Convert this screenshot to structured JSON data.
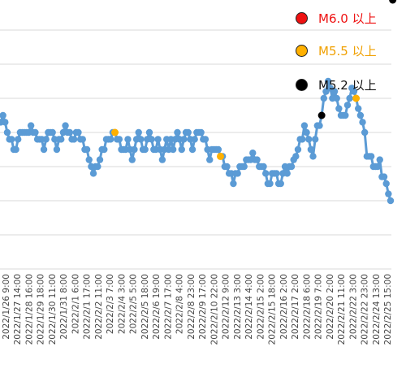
{
  "chart_data": {
    "type": "line",
    "title": "",
    "xlabel": "",
    "ylabel": "",
    "grid": true,
    "legend_position": "top-right",
    "colors": {
      "line": "#5b9bd5",
      "grid": "#d9d9d9",
      "m60": "#ee1111",
      "m55": "#ffb000",
      "m52": "#000000",
      "m55_text": "#f0a000"
    },
    "legend": [
      {
        "key": "m60",
        "label": "M6.0 以上"
      },
      {
        "key": "m55",
        "label": "M5.5 以上"
      },
      {
        "key": "m52",
        "label": "M5.2 以上"
      }
    ],
    "x_tick_labels": [
      "2022/1/26 9:00",
      "2022/1/27 14:00",
      "2022/1/28 16:00",
      "2022/1/29 18:00",
      "2022/1/30 11:00",
      "2022/1/31 8:00",
      "2022/2/1 6:00",
      "2022/2/1 17:00",
      "2022/2/2 11:00",
      "2022/2/3 7:00",
      "2022/2/4 3:00",
      "2022/2/5 5:00",
      "2022/2/5 18:00",
      "2022/2/6 19:00",
      "2022/2/7 17:00",
      "2022/2/8 4:00",
      "2022/2/8 23:00",
      "2022/2/9 17:00",
      "2022/2/10 22:00",
      "2022/2/12 9:00",
      "2022/2/13 3:00",
      "2022/2/14 4:00",
      "2022/2/15 2:00",
      "2022/2/15 18:00",
      "2022/2/16 2:00",
      "2022/2/17 2:00",
      "2022/2/18 6:00",
      "2022/2/19 7:00",
      "2022/2/20 2:00",
      "2022/2/21 11:00",
      "2022/2/22 3:00",
      "2022/2/22 23:00",
      "2022/2/24 13:00",
      "2022/2/25 15:00"
    ],
    "y_levels": [
      0,
      1,
      2,
      3,
      4,
      5,
      6,
      7
    ],
    "ylim": [
      0,
      7.4
    ],
    "series": [
      {
        "values": [
          4.3,
          4.5,
          4.3,
          4.0,
          3.8,
          3.8,
          3.5,
          3.5,
          3.8,
          4.0,
          4.0,
          4.0,
          4.0,
          4.0,
          4.2,
          4.0,
          4.0,
          3.8,
          3.8,
          3.8,
          3.5,
          3.8,
          4.0,
          4.0,
          4.0,
          3.8,
          3.5,
          3.8,
          3.8,
          4.0,
          4.2,
          4.0,
          4.0,
          3.8,
          3.8,
          4.0,
          4.0,
          3.8,
          3.8,
          3.5,
          3.5,
          3.2,
          3.0,
          2.8,
          3.0,
          3.0,
          3.2,
          3.5,
          3.5,
          3.8,
          3.8,
          3.8,
          4.0,
          4.0,
          3.8,
          3.8,
          3.5,
          3.5,
          3.5,
          3.8,
          3.5,
          3.2,
          3.5,
          3.8,
          4.0,
          3.8,
          3.5,
          3.5,
          3.8,
          4.0,
          3.8,
          3.5,
          3.5,
          3.8,
          3.5,
          3.2,
          3.5,
          3.8,
          3.5,
          3.8,
          3.5,
          3.8,
          4.0,
          3.8,
          3.5,
          3.8,
          4.0,
          4.0,
          3.8,
          3.5,
          3.8,
          4.0,
          4.0,
          4.0,
          3.8,
          3.8,
          3.5,
          3.2,
          3.5,
          3.5,
          3.5,
          3.5,
          3.3,
          3.3,
          3.0,
          3.0,
          2.8,
          2.8,
          2.5,
          2.8,
          2.8,
          3.0,
          3.0,
          3.0,
          3.2,
          3.2,
          3.2,
          3.4,
          3.2,
          3.2,
          3.0,
          3.0,
          3.0,
          2.8,
          2.5,
          2.5,
          2.8,
          2.8,
          2.8,
          2.5,
          2.5,
          2.8,
          3.0,
          2.8,
          3.0,
          3.0,
          3.2,
          3.3,
          3.5,
          3.8,
          3.8,
          4.2,
          4.0,
          3.8,
          3.5,
          3.3,
          3.8,
          4.2,
          4.2,
          4.5,
          5.0,
          5.2,
          5.5,
          5.3,
          5.0,
          5.2,
          5.0,
          4.7,
          4.5,
          4.5,
          4.5,
          4.8,
          5.0,
          5.3,
          5.2,
          5.0,
          4.7,
          4.5,
          4.3,
          4.0,
          3.3,
          3.3,
          3.3,
          3.0,
          3.0,
          3.0,
          3.2,
          2.7,
          2.7,
          2.5,
          2.2,
          2.0
        ],
        "markers": [
          {
            "index": 53,
            "category": "m55"
          },
          {
            "index": 102,
            "category": "m55"
          },
          {
            "index": 149,
            "category": "m52"
          },
          {
            "index": 165,
            "category": "m55"
          },
          {
            "index": 182,
            "category": "m52"
          }
        ]
      }
    ]
  }
}
